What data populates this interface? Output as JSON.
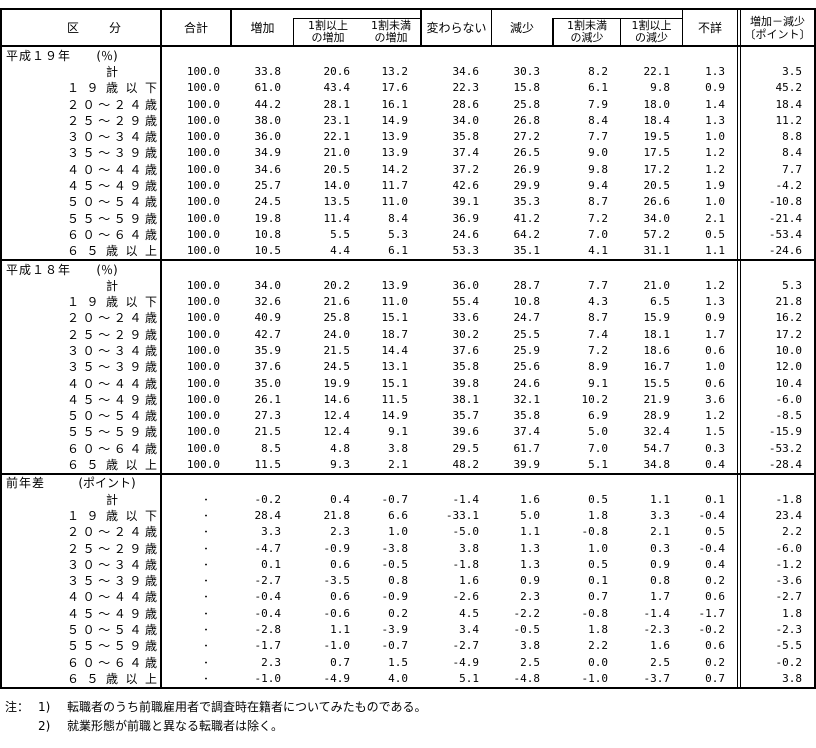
{
  "header": {
    "kubun": "区　　分",
    "total": "合計",
    "increase": "増加",
    "inc_over_l1": "1割以上",
    "inc_over_l2": "の増加",
    "inc_under_l1": "1割未満",
    "inc_under_l2": "の増加",
    "unchanged": "変わらない",
    "decrease": "減少",
    "dec_under_l1": "1割未満",
    "dec_under_l2": "の減少",
    "dec_over_l1": "1割以上",
    "dec_over_l2": "の減少",
    "unknown": "不詳",
    "diff_l1": "増加－減少",
    "diff_l2": "〔ポイント〕"
  },
  "blocks": [
    {
      "group": "平成１９年",
      "unit": "(％)",
      "rows": [
        {
          "label": "計",
          "align": "center",
          "values": [
            "100.0",
            "33.8",
            "20.6",
            "13.2",
            "34.6",
            "30.3",
            "8.2",
            "22.1",
            "1.3",
            "3.5"
          ]
        },
        {
          "label": "１９歳以下",
          "values": [
            "100.0",
            "61.0",
            "43.4",
            "17.6",
            "22.3",
            "15.8",
            "6.1",
            "9.8",
            "0.9",
            "45.2"
          ]
        },
        {
          "label": "２０～２４歳",
          "values": [
            "100.0",
            "44.2",
            "28.1",
            "16.1",
            "28.6",
            "25.8",
            "7.9",
            "18.0",
            "1.4",
            "18.4"
          ]
        },
        {
          "label": "２５～２９歳",
          "values": [
            "100.0",
            "38.0",
            "23.1",
            "14.9",
            "34.0",
            "26.8",
            "8.4",
            "18.4",
            "1.3",
            "11.2"
          ]
        },
        {
          "label": "３０～３４歳",
          "values": [
            "100.0",
            "36.0",
            "22.1",
            "13.9",
            "35.8",
            "27.2",
            "7.7",
            "19.5",
            "1.0",
            "8.8"
          ]
        },
        {
          "label": "３５～３９歳",
          "values": [
            "100.0",
            "34.9",
            "21.0",
            "13.9",
            "37.4",
            "26.5",
            "9.0",
            "17.5",
            "1.2",
            "8.4"
          ]
        },
        {
          "label": "４０～４４歳",
          "values": [
            "100.0",
            "34.6",
            "20.5",
            "14.2",
            "37.2",
            "26.9",
            "9.8",
            "17.2",
            "1.2",
            "7.7"
          ]
        },
        {
          "label": "４５～４９歳",
          "values": [
            "100.0",
            "25.7",
            "14.0",
            "11.7",
            "42.6",
            "29.9",
            "9.4",
            "20.5",
            "1.9",
            "-4.2"
          ]
        },
        {
          "label": "５０～５４歳",
          "values": [
            "100.0",
            "24.5",
            "13.5",
            "11.0",
            "39.1",
            "35.3",
            "8.7",
            "26.6",
            "1.0",
            "-10.8"
          ]
        },
        {
          "label": "５５～５９歳",
          "values": [
            "100.0",
            "19.8",
            "11.4",
            "8.4",
            "36.9",
            "41.2",
            "7.2",
            "34.0",
            "2.1",
            "-21.4"
          ]
        },
        {
          "label": "６０～６４歳",
          "values": [
            "100.0",
            "10.8",
            "5.5",
            "5.3",
            "24.6",
            "64.2",
            "7.0",
            "57.2",
            "0.5",
            "-53.4"
          ]
        },
        {
          "label": "６５歳以上",
          "values": [
            "100.0",
            "10.5",
            "4.4",
            "6.1",
            "53.3",
            "35.1",
            "4.1",
            "31.1",
            "1.1",
            "-24.6"
          ]
        }
      ]
    },
    {
      "group": "平成１８年",
      "unit": "(％)",
      "rows": [
        {
          "label": "計",
          "align": "center",
          "values": [
            "100.0",
            "34.0",
            "20.2",
            "13.9",
            "36.0",
            "28.7",
            "7.7",
            "21.0",
            "1.2",
            "5.3"
          ]
        },
        {
          "label": "１９歳以下",
          "values": [
            "100.0",
            "32.6",
            "21.6",
            "11.0",
            "55.4",
            "10.8",
            "4.3",
            "6.5",
            "1.3",
            "21.8"
          ]
        },
        {
          "label": "２０～２４歳",
          "values": [
            "100.0",
            "40.9",
            "25.8",
            "15.1",
            "33.6",
            "24.7",
            "8.7",
            "15.9",
            "0.9",
            "16.2"
          ]
        },
        {
          "label": "２５～２９歳",
          "values": [
            "100.0",
            "42.7",
            "24.0",
            "18.7",
            "30.2",
            "25.5",
            "7.4",
            "18.1",
            "1.7",
            "17.2"
          ]
        },
        {
          "label": "３０～３４歳",
          "values": [
            "100.0",
            "35.9",
            "21.5",
            "14.4",
            "37.6",
            "25.9",
            "7.2",
            "18.6",
            "0.6",
            "10.0"
          ]
        },
        {
          "label": "３５～３９歳",
          "values": [
            "100.0",
            "37.6",
            "24.5",
            "13.1",
            "35.8",
            "25.6",
            "8.9",
            "16.7",
            "1.0",
            "12.0"
          ]
        },
        {
          "label": "４０～４４歳",
          "values": [
            "100.0",
            "35.0",
            "19.9",
            "15.1",
            "39.8",
            "24.6",
            "9.1",
            "15.5",
            "0.6",
            "10.4"
          ]
        },
        {
          "label": "４５～４９歳",
          "values": [
            "100.0",
            "26.1",
            "14.6",
            "11.5",
            "38.1",
            "32.1",
            "10.2",
            "21.9",
            "3.6",
            "-6.0"
          ]
        },
        {
          "label": "５０～５４歳",
          "values": [
            "100.0",
            "27.3",
            "12.4",
            "14.9",
            "35.7",
            "35.8",
            "6.9",
            "28.9",
            "1.2",
            "-8.5"
          ]
        },
        {
          "label": "５５～５９歳",
          "values": [
            "100.0",
            "21.5",
            "12.4",
            "9.1",
            "39.6",
            "37.4",
            "5.0",
            "32.4",
            "1.5",
            "-15.9"
          ]
        },
        {
          "label": "６０～６４歳",
          "values": [
            "100.0",
            "8.5",
            "4.8",
            "3.8",
            "29.5",
            "61.7",
            "7.0",
            "54.7",
            "0.3",
            "-53.2"
          ]
        },
        {
          "label": "６５歳以上",
          "values": [
            "100.0",
            "11.5",
            "9.3",
            "2.1",
            "48.2",
            "39.9",
            "5.1",
            "34.8",
            "0.4",
            "-28.4"
          ]
        }
      ]
    },
    {
      "group": "前年差",
      "unit": "(ポイント)",
      "rows": [
        {
          "label": "計",
          "align": "center",
          "values": [
            "・",
            "-0.2",
            "0.4",
            "-0.7",
            "-1.4",
            "1.6",
            "0.5",
            "1.1",
            "0.1",
            "-1.8"
          ]
        },
        {
          "label": "１９歳以下",
          "values": [
            "・",
            "28.4",
            "21.8",
            "6.6",
            "-33.1",
            "5.0",
            "1.8",
            "3.3",
            "-0.4",
            "23.4"
          ]
        },
        {
          "label": "２０～２４歳",
          "values": [
            "・",
            "3.3",
            "2.3",
            "1.0",
            "-5.0",
            "1.1",
            "-0.8",
            "2.1",
            "0.5",
            "2.2"
          ]
        },
        {
          "label": "２５～２９歳",
          "values": [
            "・",
            "-4.7",
            "-0.9",
            "-3.8",
            "3.8",
            "1.3",
            "1.0",
            "0.3",
            "-0.4",
            "-6.0"
          ]
        },
        {
          "label": "３０～３４歳",
          "values": [
            "・",
            "0.1",
            "0.6",
            "-0.5",
            "-1.8",
            "1.3",
            "0.5",
            "0.9",
            "0.4",
            "-1.2"
          ]
        },
        {
          "label": "３５～３９歳",
          "values": [
            "・",
            "-2.7",
            "-3.5",
            "0.8",
            "1.6",
            "0.9",
            "0.1",
            "0.8",
            "0.2",
            "-3.6"
          ]
        },
        {
          "label": "４０～４４歳",
          "values": [
            "・",
            "-0.4",
            "0.6",
            "-0.9",
            "-2.6",
            "2.3",
            "0.7",
            "1.7",
            "0.6",
            "-2.7"
          ]
        },
        {
          "label": "４５～４９歳",
          "values": [
            "・",
            "-0.4",
            "-0.6",
            "0.2",
            "4.5",
            "-2.2",
            "-0.8",
            "-1.4",
            "-1.7",
            "1.8"
          ]
        },
        {
          "label": "５０～５４歳",
          "values": [
            "・",
            "-2.8",
            "1.1",
            "-3.9",
            "3.4",
            "-0.5",
            "1.8",
            "-2.3",
            "-0.2",
            "-2.3"
          ]
        },
        {
          "label": "５５～５９歳",
          "values": [
            "・",
            "-1.7",
            "-1.0",
            "-0.7",
            "-2.7",
            "3.8",
            "2.2",
            "1.6",
            "0.6",
            "-5.5"
          ]
        },
        {
          "label": "６０～６４歳",
          "values": [
            "・",
            "2.3",
            "0.7",
            "1.5",
            "-4.9",
            "2.5",
            "0.0",
            "2.5",
            "0.2",
            "-0.2"
          ]
        },
        {
          "label": "６５歳以上",
          "values": [
            "・",
            "-1.0",
            "-4.9",
            "4.0",
            "5.1",
            "-4.8",
            "-1.0",
            "-3.7",
            "0.7",
            "3.8"
          ]
        }
      ]
    }
  ],
  "notes": {
    "prefix": "注：",
    "n1": "1)",
    "t1": "転職者のうち前職雇用者で調査時在籍者についてみたものである。",
    "n2": "2)",
    "t2": "就業形態が前職と異なる転職者は除く。"
  }
}
